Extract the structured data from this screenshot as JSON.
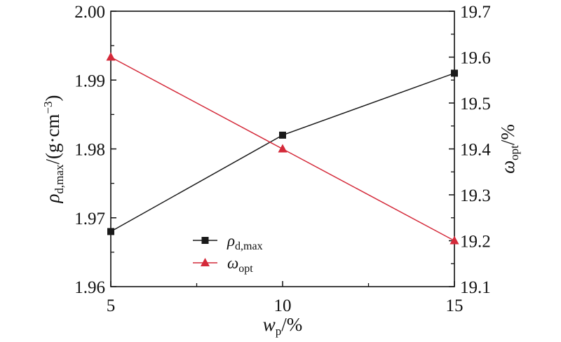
{
  "chart_data": {
    "type": "line",
    "x": [
      5,
      10,
      15
    ],
    "xlim": [
      5,
      15
    ],
    "xticks": [
      "5",
      "10",
      "15"
    ],
    "xlabel": {
      "main": "w",
      "sub": "p",
      "rest": "/%"
    },
    "left_axis": {
      "ylim": [
        1.96,
        2.0
      ],
      "ticks": [
        "1.96",
        "1.97",
        "1.98",
        "1.99",
        "2.00"
      ],
      "label": {
        "main": "ρ",
        "sub": "d,max",
        "rest": "/(g·cm",
        "sup": "−3",
        "end": ")"
      }
    },
    "right_axis": {
      "ylim": [
        19.1,
        19.7
      ],
      "ticks": [
        "19.1",
        "19.2",
        "19.3",
        "19.4",
        "19.5",
        "19.6",
        "19.7"
      ],
      "label": {
        "main": "ω",
        "sub": "opt",
        "rest": "/%"
      }
    },
    "series": [
      {
        "axis": "left",
        "values": [
          1.968,
          1.982,
          1.991
        ],
        "color": "#1a1a1a",
        "marker": "square",
        "legend": {
          "main": "ρ",
          "sub": "d,max"
        }
      },
      {
        "axis": "right",
        "values": [
          19.6,
          19.4,
          19.2
        ],
        "color": "#d42a3a",
        "marker": "triangle",
        "legend": {
          "main": "ω",
          "sub": "opt"
        }
      }
    ],
    "legend_position": "bottom-center",
    "grid": false
  }
}
